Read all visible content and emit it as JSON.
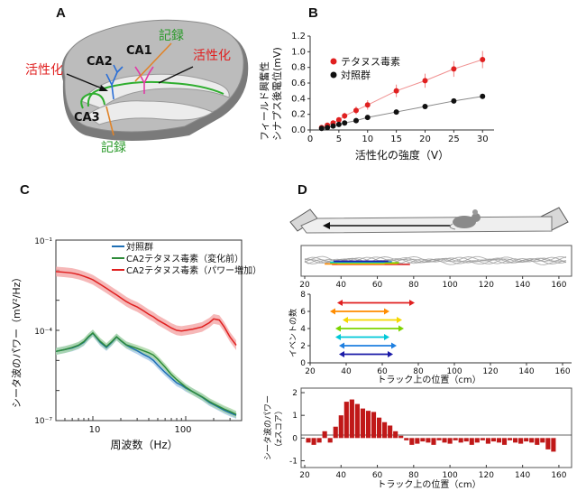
{
  "panels": {
    "a": "A",
    "b": "B",
    "c": "C",
    "d": "D"
  },
  "panel_a": {
    "labels": {
      "ca1": "CA1",
      "ca2": "CA2",
      "ca3": "CA3",
      "record_top": "記録",
      "record_bottom": "記録",
      "activate_left": "活性化",
      "activate_right": "活性化"
    },
    "colors": {
      "green_label": "#2a9a2a",
      "red_label": "#e02020",
      "brain": "#8c8c8c",
      "brain_light": "#c8c8c8"
    }
  },
  "panel_b": {
    "ylabel_line1": "フィールド興奮性",
    "ylabel_line2": "シナプス後電位(mV)",
    "xlabel": "活性化の強度（V）",
    "legend": [
      "テタヌス毒素",
      "対照群"
    ]
  },
  "panel_c": {
    "ylabel": "シータ波のパワー（mV²/Hz）",
    "xlabel": "周波数（Hz）",
    "ytick_labels": [
      "10⁻¹",
      "10⁻⁴",
      "10⁻⁷"
    ],
    "xtick_labels": [
      "10",
      "100"
    ],
    "legend": [
      "対照群",
      "CA2テタヌス毒素（変化前）",
      "CA2テタヌス毒素（パワー増加）"
    ]
  },
  "panel_d": {
    "track_xticks": [
      "20",
      "40",
      "60",
      "80",
      "100",
      "120",
      "140",
      "160"
    ],
    "events_ylabel": "イベントの数",
    "events_yticks": [
      "0",
      "2",
      "4",
      "6",
      "8"
    ],
    "events_xlabel": "トラック上の位置（cm）",
    "theta_ylabel_line1": "シータ波のパワー",
    "theta_ylabel_line2": "（zスコア）",
    "theta_yticks": [
      "2",
      "1",
      "0",
      "-1"
    ],
    "theta_xlabel": "トラック上の位置（cm）"
  },
  "chart_data": [
    {
      "type": "line",
      "xlabel": "活性化の強度（V）",
      "ylabel": "フィールド興奮性シナプス後電位(mV)",
      "xlim": [
        0,
        32
      ],
      "ylim": [
        0,
        1.2
      ],
      "xticks": [
        0,
        5,
        10,
        15,
        20,
        25,
        30
      ],
      "yticks": [
        0,
        0.2,
        0.4,
        0.6,
        0.8,
        1.0,
        1.2
      ],
      "grid": false,
      "legend_position": "top-left",
      "x": [
        2,
        3,
        4,
        5,
        6,
        8,
        10,
        15,
        20,
        25,
        30
      ],
      "series": [
        {
          "name": "テタヌス毒素",
          "color": "#e02020",
          "values": [
            0.03,
            0.06,
            0.09,
            0.13,
            0.18,
            0.25,
            0.32,
            0.5,
            0.63,
            0.78,
            0.9
          ],
          "error": [
            0.01,
            0.02,
            0.02,
            0.03,
            0.04,
            0.05,
            0.06,
            0.08,
            0.09,
            0.1,
            0.11
          ]
        },
        {
          "name": "対照群",
          "color": "#111111",
          "values": [
            0.02,
            0.03,
            0.05,
            0.07,
            0.09,
            0.12,
            0.16,
            0.23,
            0.3,
            0.37,
            0.43
          ],
          "error": [
            0.01,
            0.01,
            0.01,
            0.01,
            0.01,
            0.02,
            0.02,
            0.02,
            0.03,
            0.03,
            0.03
          ]
        }
      ]
    },
    {
      "type": "line",
      "xlabel": "周波数（Hz）",
      "ylabel": "シータ波のパワー（mV²/Hz）",
      "xscale": "log",
      "yscale": "log",
      "xlim": [
        4,
        400
      ],
      "ylim": [
        1e-07,
        0.1
      ],
      "legend_position": "top-right",
      "x": [
        4,
        5,
        6,
        7,
        8,
        9,
        10,
        12,
        14,
        16,
        18,
        20,
        23,
        26,
        30,
        35,
        40,
        45,
        50,
        60,
        70,
        80,
        90,
        100,
        120,
        150,
        180,
        200,
        230,
        260,
        300,
        350
      ],
      "series": [
        {
          "name": "対照群",
          "color": "#1f6fb4",
          "values": [
            2e-05,
            2.3e-05,
            2.6e-05,
            3.1e-05,
            4e-05,
            6e-05,
            8e-05,
            4e-05,
            2.7e-05,
            4e-05,
            6e-05,
            4.5e-05,
            3.2e-05,
            2.6e-05,
            2.1e-05,
            1.6e-05,
            1.3e-05,
            1e-05,
            7e-06,
            4e-06,
            2.6e-06,
            1.8e-06,
            1.5e-06,
            1.2e-06,
            9e-07,
            6e-07,
            4e-07,
            3.4e-07,
            2.7e-07,
            2.2e-07,
            1.8e-07,
            1.5e-07
          ]
        },
        {
          "name": "CA2テタヌス毒素（変化前）",
          "color": "#2e8b3a",
          "values": [
            2e-05,
            2.3e-05,
            2.7e-05,
            3.2e-05,
            4.2e-05,
            6.2e-05,
            8.2e-05,
            4.3e-05,
            2.9e-05,
            4.2e-05,
            6.1e-05,
            4.6e-05,
            3.3e-05,
            2.9e-05,
            2.5e-05,
            2.1e-05,
            1.8e-05,
            1.5e-05,
            1.1e-05,
            6e-06,
            3.4e-06,
            2.3e-06,
            1.7e-06,
            1.3e-06,
            9e-07,
            6.2e-07,
            4.3e-07,
            3.6e-07,
            2.9e-07,
            2.4e-07,
            2e-07,
            1.6e-07
          ]
        },
        {
          "name": "CA2テタヌス毒素（パワー増加）",
          "color": "#e02020",
          "values": [
            0.009,
            0.0085,
            0.008,
            0.0072,
            0.0063,
            0.0055,
            0.0048,
            0.0034,
            0.0025,
            0.0019,
            0.0015,
            0.0012,
            0.0009,
            0.00073,
            0.0006,
            0.00045,
            0.00034,
            0.00028,
            0.00022,
            0.00016,
            0.00012,
            0.0001,
            9.5e-05,
            0.0001,
            0.00011,
            0.00013,
            0.00018,
            0.00024,
            0.00022,
            0.00013,
            6e-05,
            3.2e-05
          ]
        }
      ]
    },
    {
      "type": "scatter",
      "note_free": true,
      "xlim": [
        20,
        165
      ],
      "xticks": [
        20,
        40,
        60,
        80,
        100,
        120,
        140,
        160
      ],
      "ylim": [
        0,
        8
      ],
      "yticks": [
        0,
        2,
        4,
        6,
        8
      ],
      "ylabel": "イベントの数",
      "xlabel": "トラック上の位置（cm）",
      "series": [
        {
          "level": 7,
          "start": 35,
          "end": 78,
          "color": "#e02020"
        },
        {
          "level": 6,
          "start": 31,
          "end": 64,
          "color": "#ff8c00"
        },
        {
          "level": 5,
          "start": 38,
          "end": 71,
          "color": "#f5d800"
        },
        {
          "level": 4,
          "start": 34,
          "end": 72,
          "color": "#7dd400"
        },
        {
          "level": 3,
          "start": 34,
          "end": 64,
          "color": "#00c8d8"
        },
        {
          "level": 2,
          "start": 36,
          "end": 68,
          "color": "#1e7fe0"
        },
        {
          "level": 1,
          "start": 36,
          "end": 66,
          "color": "#1a1aa8"
        }
      ]
    },
    {
      "type": "bar",
      "xlabel": "トラック上の位置（cm）",
      "ylabel": "シータ波のパワー（zスコア）",
      "xlim": [
        20,
        165
      ],
      "ylim": [
        -1.3,
        2.2
      ],
      "color": "#c01818",
      "x": [
        22,
        25,
        28,
        31,
        34,
        37,
        40,
        43,
        46,
        49,
        52,
        55,
        58,
        61,
        64,
        67,
        70,
        73,
        76,
        79,
        82,
        85,
        88,
        91,
        94,
        97,
        100,
        103,
        106,
        109,
        112,
        115,
        118,
        121,
        124,
        127,
        130,
        133,
        136,
        139,
        142,
        145,
        148,
        151,
        154,
        157
      ],
      "values": [
        -0.2,
        -0.3,
        -0.2,
        0.3,
        -0.2,
        0.5,
        1.0,
        1.6,
        1.7,
        1.5,
        1.3,
        1.2,
        1.15,
        0.9,
        0.7,
        0.55,
        0.3,
        0.1,
        -0.1,
        -0.3,
        -0.25,
        -0.15,
        -0.2,
        -0.3,
        -0.1,
        -0.2,
        -0.25,
        -0.1,
        -0.2,
        -0.15,
        -0.3,
        -0.2,
        -0.1,
        -0.25,
        -0.15,
        -0.2,
        -0.3,
        -0.1,
        -0.2,
        -0.25,
        -0.15,
        -0.2,
        -0.3,
        -0.2,
        -0.5,
        -0.6
      ]
    }
  ]
}
